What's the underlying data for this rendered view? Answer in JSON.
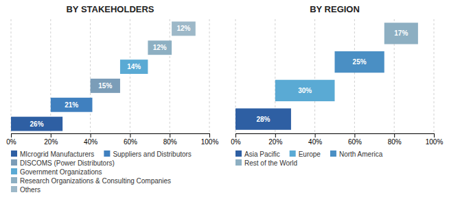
{
  "chart_data": [
    {
      "type": "bar",
      "orientation": "horizontal",
      "title": "BY STAKEHOLDERS",
      "categories": [
        null,
        null,
        null,
        null,
        null,
        null
      ],
      "series": [
        {
          "name": "MIcrogrid Manufacturers",
          "color": "#2e5fa3",
          "values": [
            26,
            null,
            null,
            null,
            null,
            null
          ],
          "starts": [
            0,
            null,
            null,
            null,
            null,
            null
          ],
          "value_labels": [
            "26%",
            null,
            null,
            null,
            null,
            null
          ]
        },
        {
          "name": "Suppliers and Distributors",
          "color": "#4080bf",
          "values": [
            null,
            21,
            null,
            null,
            null,
            null
          ],
          "starts": [
            null,
            20,
            null,
            null,
            null,
            null
          ],
          "value_labels": [
            null,
            "21%",
            null,
            null,
            null,
            null
          ]
        },
        {
          "name": "DISCOMS (Power Distributors)",
          "color": "#7b9db8",
          "values": [
            null,
            null,
            15,
            null,
            null,
            null
          ],
          "starts": [
            null,
            null,
            40,
            null,
            null,
            null
          ],
          "value_labels": [
            null,
            null,
            "15%",
            null,
            null,
            null
          ]
        },
        {
          "name": "Government Organizations",
          "color": "#5aaad4",
          "values": [
            null,
            null,
            null,
            14,
            null,
            null
          ],
          "starts": [
            null,
            null,
            null,
            55,
            null,
            null
          ],
          "value_labels": [
            null,
            null,
            null,
            "14%",
            null,
            null
          ]
        },
        {
          "name": "Research Organizations & Consulting Companies",
          "color": "#8dafc2",
          "values": [
            null,
            null,
            null,
            null,
            12,
            null
          ],
          "starts": [
            null,
            null,
            null,
            null,
            69,
            null
          ],
          "value_labels": [
            null,
            null,
            null,
            null,
            "12%",
            null
          ]
        },
        {
          "name": "Others",
          "color": "#9db8c8",
          "values": [
            null,
            null,
            null,
            null,
            null,
            12
          ],
          "starts": [
            null,
            null,
            null,
            null,
            null,
            81
          ],
          "value_labels": [
            null,
            null,
            null,
            null,
            null,
            "12%"
          ]
        }
      ],
      "xlim": [
        0,
        100
      ],
      "xticks": [
        {
          "value": 0,
          "label": "0%"
        },
        {
          "value": 20,
          "label": "20%"
        },
        {
          "value": 40,
          "label": "40%"
        },
        {
          "value": 60,
          "label": "60%"
        },
        {
          "value": 80,
          "label": "80%"
        },
        {
          "value": 100,
          "label": "100%"
        }
      ],
      "grid": true,
      "data_labels": true,
      "tick_labels": "x",
      "legend": "bottom"
    },
    {
      "type": "bar",
      "orientation": "horizontal",
      "title": "BY REGION",
      "categories": [
        null,
        null,
        null,
        null
      ],
      "series": [
        {
          "name": "Asia Pacific",
          "color": "#2e5fa3",
          "values": [
            28,
            null,
            null,
            null
          ],
          "starts": [
            0,
            null,
            null,
            null
          ],
          "value_labels": [
            "28%",
            null,
            null,
            null
          ]
        },
        {
          "name": "Europe",
          "color": "#5aaad4",
          "values": [
            null,
            30,
            null,
            null
          ],
          "starts": [
            null,
            20,
            null,
            null
          ],
          "value_labels": [
            null,
            "30%",
            null,
            null
          ]
        },
        {
          "name": "North America",
          "color": "#4a8fc4",
          "values": [
            null,
            null,
            25,
            null
          ],
          "starts": [
            null,
            null,
            50,
            null
          ],
          "value_labels": [
            null,
            null,
            "25%",
            null
          ]
        },
        {
          "name": "Rest of the World",
          "color": "#8dafc2",
          "values": [
            null,
            null,
            null,
            17
          ],
          "starts": [
            null,
            null,
            null,
            75
          ],
          "value_labels": [
            null,
            null,
            null,
            "17%"
          ]
        }
      ],
      "xlim": [
        0,
        100
      ],
      "xticks": [
        {
          "value": 0,
          "label": "0%"
        },
        {
          "value": 20,
          "label": "20%"
        },
        {
          "value": 40,
          "label": "40%"
        },
        {
          "value": 60,
          "label": "60%"
        },
        {
          "value": 80,
          "label": "80%"
        },
        {
          "value": 100,
          "label": "100%"
        }
      ],
      "grid": true,
      "data_labels": true,
      "tick_labels": "x",
      "legend": "bottom"
    }
  ]
}
